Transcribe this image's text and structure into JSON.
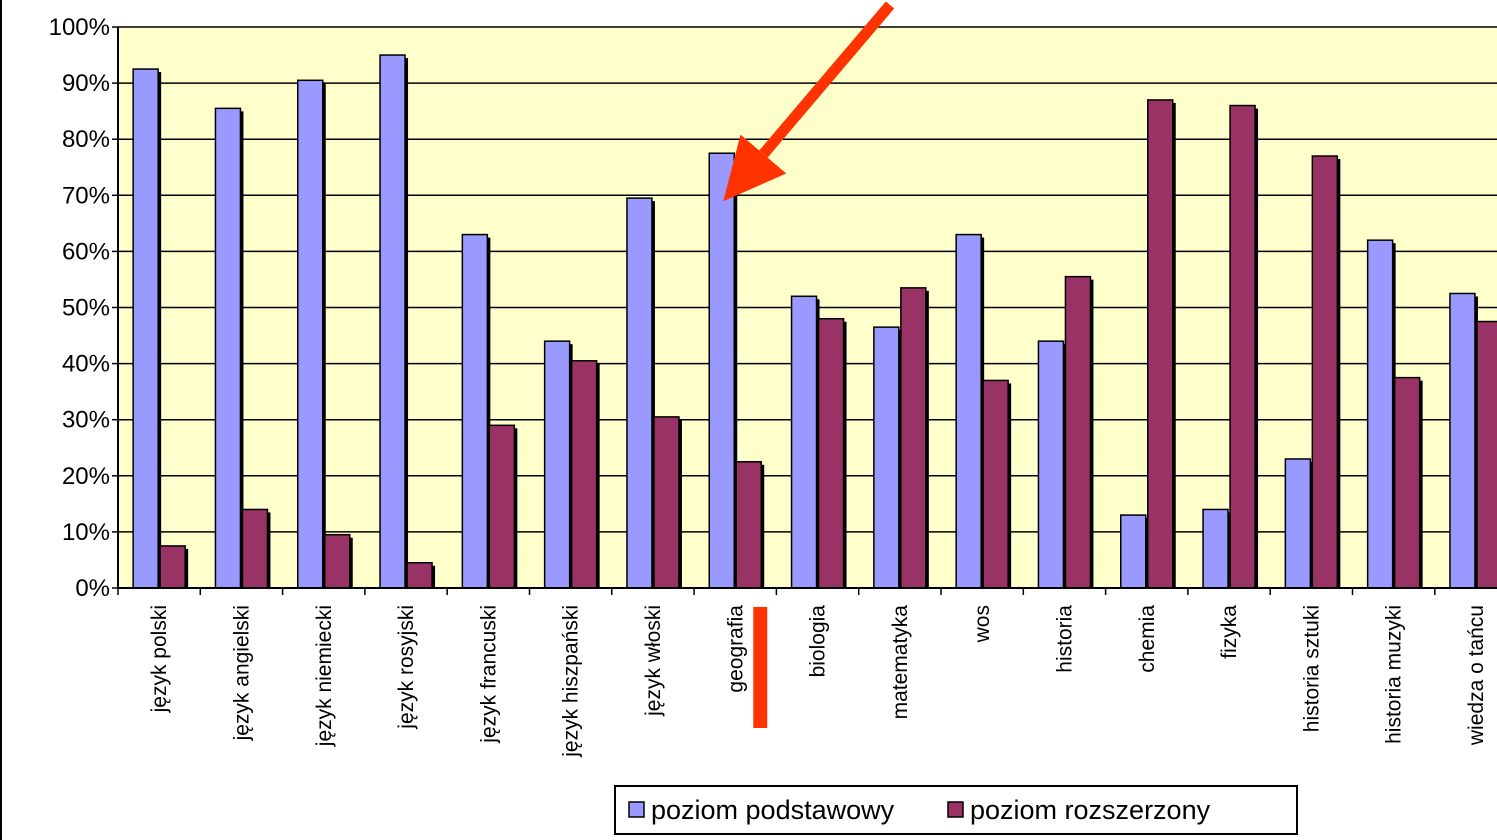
{
  "chart_data": {
    "type": "bar",
    "categories": [
      "język polski",
      "język angielski",
      "język niemiecki",
      "język rosyjski",
      "język francuski",
      "język hiszpański",
      "język włoski",
      "geografia",
      "biologia",
      "matematyka",
      "wos",
      "historia",
      "chemia",
      "fizyka",
      "historia sztuki",
      "historia muzyki",
      "wiedza o tańcu"
    ],
    "series": [
      {
        "name": "poziom podstawowy",
        "color": "#9999ff",
        "values": [
          92.5,
          85.5,
          90.5,
          95,
          63,
          44,
          69.5,
          77.5,
          52,
          46.5,
          63,
          44,
          13,
          14,
          23,
          62,
          52.5
        ]
      },
      {
        "name": "poziom rozszerzony",
        "color": "#993366",
        "values": [
          7.5,
          14,
          9.5,
          4.5,
          29,
          40.5,
          30.5,
          22.5,
          48,
          53.5,
          37,
          55.5,
          87,
          86,
          77,
          37.5,
          47.5
        ]
      }
    ],
    "yticks": [
      "0%",
      "10%",
      "20%",
      "30%",
      "40%",
      "50%",
      "60%",
      "70%",
      "80%",
      "90%",
      "100%"
    ],
    "ylim": [
      0,
      100
    ],
    "title": "",
    "xlabel": "",
    "ylabel": "",
    "grid": true,
    "legend": "bottom",
    "plot_background": "#ffffcc",
    "annotations": [
      {
        "type": "arrow",
        "color": "#ff3300",
        "points_to": "geografia"
      },
      {
        "type": "underline-bar",
        "color": "#ff3300",
        "under": "geografia"
      }
    ]
  }
}
